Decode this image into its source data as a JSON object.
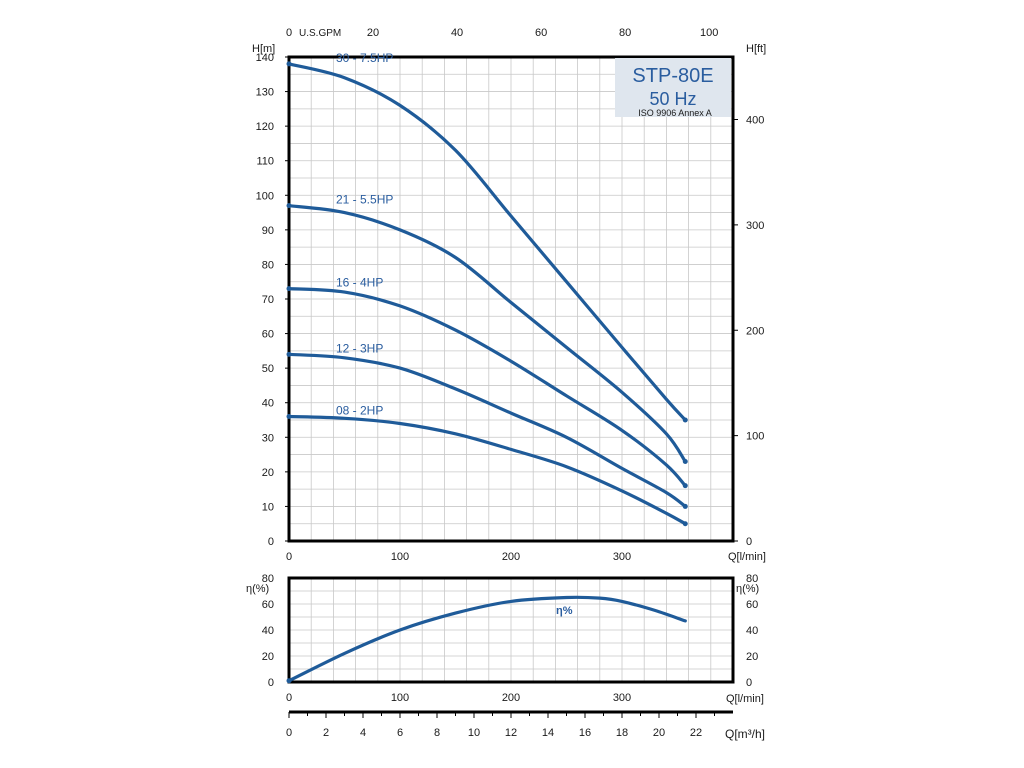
{
  "title": {
    "model": "STP-80E",
    "frequency": "50 Hz",
    "standard": "ISO 9906 Annex A"
  },
  "colors": {
    "curve": "#1f5b99",
    "label": "#2a5d9f",
    "badge": "#dfe6ee",
    "grid": "#c8c8c8",
    "frame": "#000000"
  },
  "chart_data": [
    {
      "type": "line",
      "name": "head-curves",
      "xlabel": "Q[l/min]",
      "ylabel_left": "H[m]",
      "ylabel_right": "H[ft]",
      "xlim": [
        0,
        400
      ],
      "ylim": [
        0,
        140
      ],
      "x_ticks": [
        0,
        100,
        200,
        300
      ],
      "y_ticks": [
        0,
        10,
        20,
        30,
        40,
        50,
        60,
        70,
        80,
        90,
        100,
        110,
        120,
        130,
        140
      ],
      "ft_ticks": [
        0,
        100,
        200,
        300,
        400
      ],
      "top_axis": {
        "label": "U.S.GPM",
        "ticks": [
          0,
          20,
          40,
          60,
          80,
          100
        ]
      },
      "series": [
        {
          "name": "30 - 7.5HP",
          "x": [
            0,
            50,
            100,
            150,
            200,
            250,
            300,
            340,
            357
          ],
          "y": [
            138,
            134,
            126,
            113,
            94,
            75,
            56,
            41,
            35
          ]
        },
        {
          "name": "21 - 5.5HP",
          "x": [
            0,
            50,
            100,
            150,
            200,
            250,
            300,
            340,
            357
          ],
          "y": [
            97,
            95,
            90,
            82,
            69,
            56,
            43,
            31,
            23
          ]
        },
        {
          "name": "16 - 4HP",
          "x": [
            0,
            50,
            100,
            150,
            200,
            250,
            300,
            340,
            357
          ],
          "y": [
            73,
            72,
            68,
            61,
            52,
            42,
            32,
            22,
            16
          ]
        },
        {
          "name": "12 - 3HP",
          "x": [
            0,
            50,
            100,
            150,
            200,
            250,
            300,
            340,
            357
          ],
          "y": [
            54,
            53,
            50,
            44,
            37,
            30,
            21,
            14,
            10
          ]
        },
        {
          "name": "08 - 2HP",
          "x": [
            0,
            50,
            100,
            150,
            200,
            250,
            300,
            340,
            357
          ],
          "y": [
            36,
            35.5,
            34,
            31,
            26.5,
            21.5,
            14.5,
            8,
            5
          ]
        }
      ]
    },
    {
      "type": "line",
      "name": "efficiency-curve",
      "xlabel": "Q[l/min]",
      "ylabel_left": "η(%)",
      "ylabel_right": "η(%)",
      "xlim": [
        0,
        400
      ],
      "ylim": [
        0,
        80
      ],
      "x_ticks": [
        0,
        100,
        200,
        300
      ],
      "y_ticks": [
        0,
        20,
        40,
        60,
        80
      ],
      "series": [
        {
          "name": "η%",
          "x": [
            0,
            50,
            100,
            150,
            200,
            250,
            280,
            300,
            330,
            357
          ],
          "y": [
            1,
            22,
            40,
            53,
            62,
            65,
            64.5,
            62,
            55,
            47
          ]
        }
      ]
    },
    {
      "type": "axis",
      "name": "flow-m3h-axis",
      "xlabel": "Q[m³/h]",
      "xlim": [
        0,
        24
      ],
      "x_ticks": [
        0,
        2,
        4,
        6,
        8,
        10,
        12,
        14,
        16,
        18,
        20,
        22
      ]
    }
  ]
}
